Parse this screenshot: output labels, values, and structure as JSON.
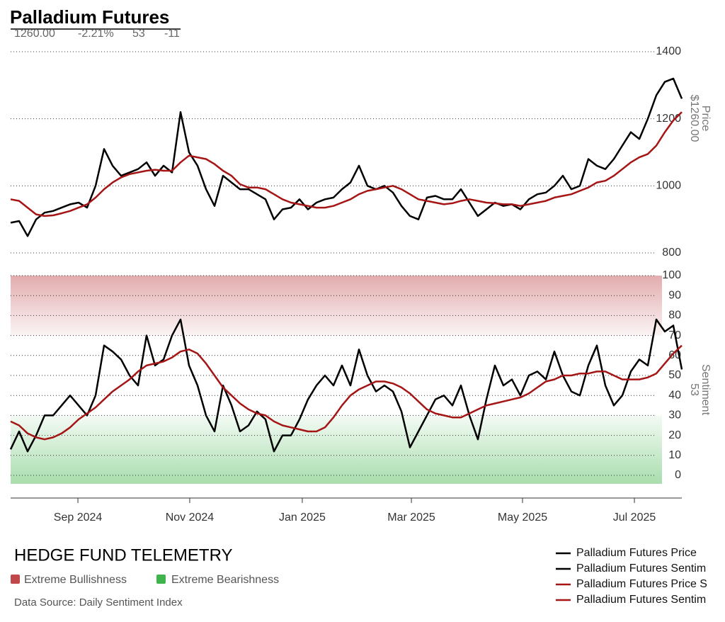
{
  "header": {
    "title": "Palladium Futures",
    "stats": [
      "1260.00",
      "-2.21%",
      "53",
      "-11"
    ]
  },
  "footer": {
    "brand": "HEDGE FUND TELEMETRY",
    "source": "Data Source: Daily Sentiment Index"
  },
  "chart_data": [
    {
      "type": "line",
      "y_label": "Price",
      "last_label": "$1260.00",
      "ylim": [
        800,
        1400
      ],
      "yticks": [
        800,
        1000,
        1200,
        1400
      ],
      "grid": true,
      "series": [
        {
          "name": "Palladium Futures Price",
          "color": "#000000",
          "values": [
            890,
            895,
            850,
            900,
            920,
            925,
            935,
            945,
            950,
            935,
            1000,
            1110,
            1060,
            1030,
            1040,
            1050,
            1070,
            1030,
            1060,
            1040,
            1220,
            1100,
            1060,
            990,
            940,
            1030,
            1010,
            990,
            990,
            975,
            960,
            900,
            930,
            935,
            960,
            930,
            950,
            960,
            965,
            990,
            1010,
            1060,
            1000,
            990,
            1000,
            980,
            940,
            910,
            900,
            965,
            970,
            960,
            960,
            990,
            950,
            910,
            930,
            950,
            940,
            945,
            930,
            960,
            975,
            980,
            1000,
            1030,
            990,
            1000,
            1080,
            1060,
            1050,
            1080,
            1120,
            1160,
            1140,
            1200,
            1270,
            1310,
            1320,
            1260
          ]
        },
        {
          "name": "Palladium Futures Price S",
          "color": "#a51515",
          "values": [
            960,
            955,
            935,
            915,
            910,
            912,
            918,
            925,
            935,
            945,
            965,
            990,
            1010,
            1025,
            1035,
            1040,
            1045,
            1048,
            1045,
            1045,
            1070,
            1090,
            1085,
            1080,
            1065,
            1045,
            1030,
            1005,
            995,
            995,
            990,
            975,
            960,
            950,
            945,
            940,
            935,
            935,
            940,
            950,
            960,
            975,
            985,
            990,
            995,
            1000,
            990,
            975,
            960,
            955,
            950,
            945,
            948,
            955,
            960,
            955,
            950,
            948,
            945,
            945,
            940,
            945,
            950,
            955,
            965,
            970,
            975,
            985,
            995,
            1010,
            1015,
            1030,
            1050,
            1070,
            1085,
            1095,
            1120,
            1160,
            1195,
            1220
          ]
        }
      ]
    },
    {
      "type": "line",
      "y_label": "Sentiment",
      "last_label": "53",
      "ylim": [
        0,
        100
      ],
      "yticks": [
        0,
        10,
        20,
        30,
        40,
        50,
        60,
        70,
        80,
        90,
        100
      ],
      "grid": true,
      "xlim": [
        0,
        79
      ],
      "xticks": [
        {
          "value": 7.92,
          "label": "Sep 2024"
        },
        {
          "value": 21.08,
          "label": "Nov 2024"
        },
        {
          "value": 34.33,
          "label": "Jan 2025"
        },
        {
          "value": 47.17,
          "label": "Mar 2025"
        },
        {
          "value": 60.25,
          "label": "May 2025"
        },
        {
          "value": 73.42,
          "label": "Jul 2025"
        }
      ],
      "bands": [
        {
          "name": "Extreme Bullishness",
          "from": 70,
          "to": 100,
          "color": "#c0474a"
        },
        {
          "name": "Extreme Bearishness",
          "from": 0,
          "to": 30,
          "color": "#3fb44a"
        }
      ],
      "series": [
        {
          "name": "Palladium Futures Sentim",
          "color": "#000000",
          "values": [
            13,
            22,
            12,
            20,
            30,
            30,
            35,
            40,
            35,
            30,
            40,
            65,
            62,
            58,
            50,
            45,
            70,
            55,
            58,
            70,
            78,
            55,
            45,
            30,
            22,
            45,
            35,
            22,
            25,
            32,
            28,
            12,
            20,
            20,
            28,
            38,
            45,
            50,
            45,
            55,
            45,
            63,
            50,
            42,
            45,
            42,
            32,
            14,
            22,
            30,
            38,
            40,
            35,
            45,
            30,
            18,
            38,
            55,
            45,
            48,
            40,
            50,
            52,
            48,
            62,
            50,
            42,
            40,
            55,
            65,
            45,
            35,
            40,
            52,
            58,
            55,
            78,
            72,
            75,
            53
          ]
        },
        {
          "name": "Palladium Futures Sentim",
          "color": "#a51515",
          "values": [
            27,
            25,
            21,
            19,
            18,
            19,
            21,
            24,
            28,
            31,
            34,
            38,
            42,
            45,
            48,
            52,
            55,
            56,
            57,
            59,
            62,
            63,
            61,
            56,
            50,
            44,
            40,
            36,
            33,
            31,
            30,
            27,
            25,
            24,
            23,
            22,
            22,
            24,
            29,
            35,
            40,
            43,
            45,
            47,
            47,
            46,
            44,
            41,
            37,
            33,
            31,
            30,
            29,
            29,
            31,
            33,
            35,
            36,
            37,
            38,
            39,
            41,
            44,
            47,
            48,
            50,
            50,
            51,
            51,
            52,
            52,
            50,
            48,
            48,
            48,
            49,
            51,
            56,
            61,
            65
          ]
        }
      ]
    }
  ]
}
